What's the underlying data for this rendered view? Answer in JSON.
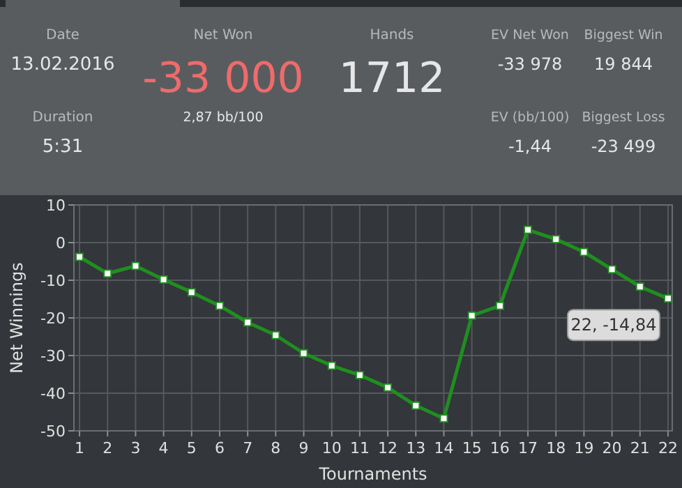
{
  "chart_data": [
    {
      "type": "other",
      "annotations": [
        "Date",
        "13.02.2016",
        "Duration",
        "5:31",
        "Net Won",
        "-33 000",
        "2,87 bb/100",
        "Hands",
        "1712",
        "EV Net Won",
        "-33 978",
        "EV (bb/100)",
        "-1,44",
        "Biggest Win",
        "19 844",
        "Biggest Loss",
        "-23 499"
      ]
    },
    {
      "type": "line",
      "xlabel": "Tournaments",
      "ylabel": "Net Winnings",
      "x": [
        1,
        2,
        3,
        4,
        5,
        6,
        7,
        8,
        9,
        10,
        11,
        12,
        13,
        14,
        15,
        16,
        17,
        18,
        19,
        20,
        21,
        22
      ],
      "series": [
        {
          "color": "#1f8f1f",
          "values": [
            -3.8,
            -8.2,
            -6.2,
            -9.8,
            -13.2,
            -16.8,
            -21.2,
            -24.6,
            -29.4,
            -32.7,
            -35.2,
            -38.5,
            -43.3,
            -46.7,
            -19.4,
            -16.8,
            3.4,
            0.9,
            -2.5,
            -7.1,
            -11.7,
            -14.84
          ]
        }
      ],
      "xlim": [
        0.8,
        22.15
      ],
      "xticks": [
        1,
        2,
        3,
        4,
        5,
        6,
        7,
        8,
        9,
        10,
        11,
        12,
        13,
        14,
        15,
        16,
        17,
        18,
        19,
        20,
        21,
        22
      ],
      "ylim": [
        -50,
        10
      ],
      "yticks": [
        -50,
        -40,
        -30,
        -20,
        -10,
        0,
        10
      ],
      "grid": true,
      "marker": "square",
      "line_style": "solid",
      "annotations": [
        {
          "text": "22, -14,84",
          "x": 22,
          "y": -14.84
        }
      ]
    }
  ]
}
